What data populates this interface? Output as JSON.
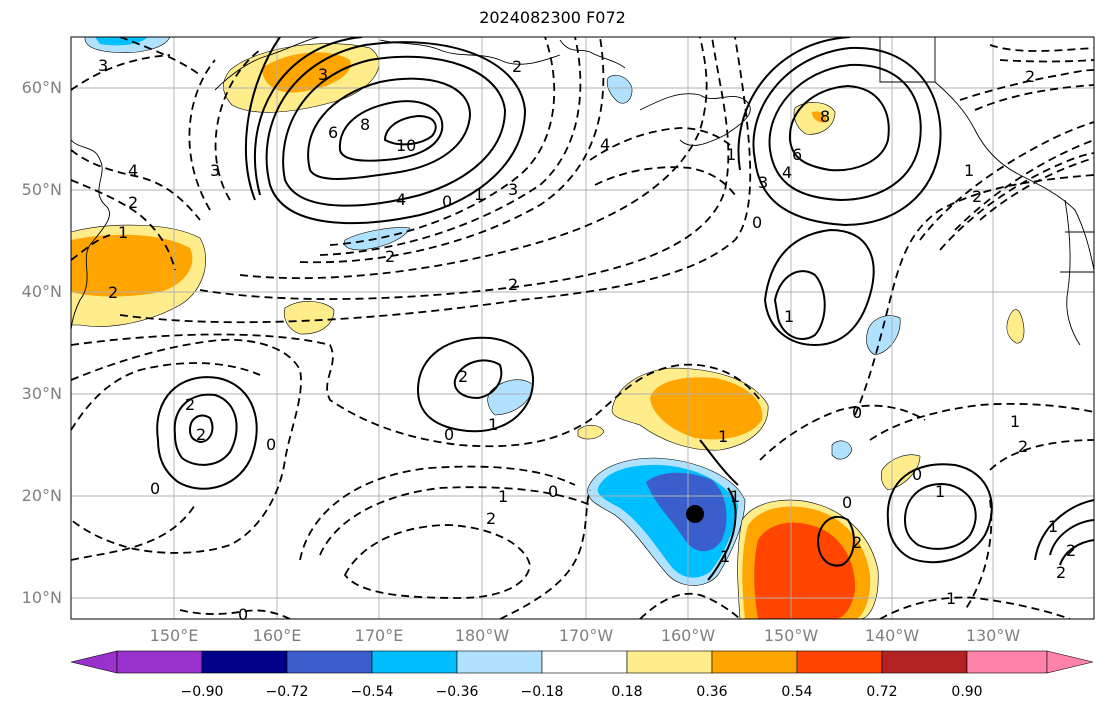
{
  "title": "2024082300 F072",
  "lat_labels": [
    "60°N",
    "50°N",
    "40°N",
    "30°N",
    "20°N",
    "10°N"
  ],
  "lon_labels": [
    "150°E",
    "160°E",
    "170°E",
    "180°W",
    "170°W",
    "160°W",
    "150°W",
    "140°W",
    "130°W"
  ],
  "colorbar": {
    "ticks": [
      "−0.90",
      "−0.72",
      "−0.54",
      "−0.36",
      "−0.18",
      "0.18",
      "0.36",
      "0.54",
      "0.72",
      "0.90"
    ],
    "colors": [
      "#9932CC",
      "#00008B",
      "#3A5FCD",
      "#00BFFF",
      "#B0E2FF",
      "#FFFFFF",
      "#FFEC8B",
      "#FFA500",
      "#FF4500",
      "#B22222",
      "#FF82AB"
    ]
  },
  "contour_labels": [
    "3",
    "3",
    "6",
    "8",
    "10",
    "4",
    "0",
    "1",
    "3",
    "2",
    "4",
    "2",
    "1",
    "2",
    "3",
    "2",
    "2",
    "8",
    "6",
    "4",
    "3",
    "1",
    "0",
    "2",
    "1",
    "2",
    "1",
    "2",
    "2",
    "0",
    "0",
    "2",
    "1",
    "0",
    "1",
    "1",
    "0",
    "2",
    "0",
    "0",
    "1",
    "2",
    "1",
    "0",
    "1",
    "1",
    "2",
    "1",
    "2",
    "2",
    "1",
    "0",
    "4"
  ],
  "colors": {
    "grid": "#b0b0b0",
    "contour": "#000000",
    "storm_marker": "#000000"
  }
}
